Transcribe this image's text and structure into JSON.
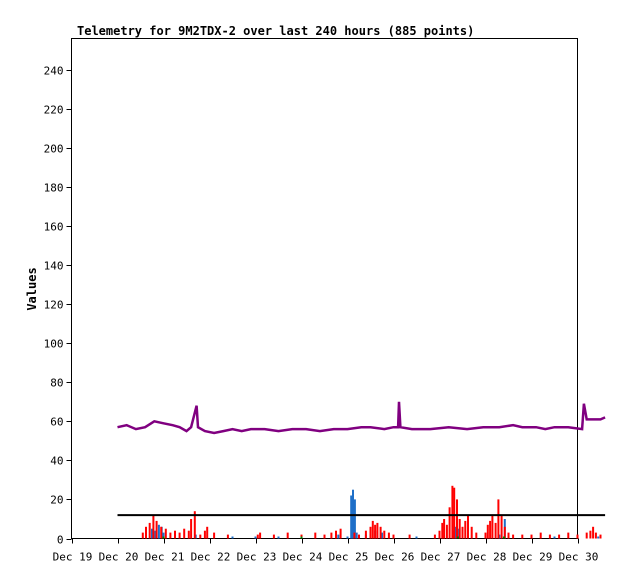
{
  "chart_data": {
    "type": "line",
    "title": "Telemetry for 9M2TDX-2 over last 240 hours (885 points)",
    "xlabel": "",
    "ylabel": "Values",
    "x_ticks": [
      "Dec 19",
      "Dec 20",
      "Dec 21",
      "Dec 22",
      "Dec 23",
      "Dec 24",
      "Dec 25",
      "Dec 26",
      "Dec 27",
      "Dec 28",
      "Dec 29",
      "Dec 30"
    ],
    "x_range_days": [
      0,
      11
    ],
    "y_ticks": [
      "0",
      "20",
      "40",
      "60",
      "80",
      "100",
      "120",
      "140",
      "160",
      "180",
      "200",
      "220",
      "240"
    ],
    "ylim": [
      0,
      256
    ],
    "grid": false,
    "series": [
      {
        "color": "#800080",
        "style": "line",
        "points": [
          [
            1.0,
            57
          ],
          [
            1.2,
            58
          ],
          [
            1.4,
            56
          ],
          [
            1.6,
            57
          ],
          [
            1.8,
            60
          ],
          [
            2.0,
            59
          ],
          [
            2.2,
            58
          ],
          [
            2.35,
            57
          ],
          [
            2.5,
            55
          ],
          [
            2.6,
            57
          ],
          [
            2.72,
            68
          ],
          [
            2.75,
            57
          ],
          [
            2.9,
            55
          ],
          [
            3.1,
            54
          ],
          [
            3.3,
            55
          ],
          [
            3.5,
            56
          ],
          [
            3.7,
            55
          ],
          [
            3.9,
            56
          ],
          [
            4.2,
            56
          ],
          [
            4.5,
            55
          ],
          [
            4.8,
            56
          ],
          [
            5.1,
            56
          ],
          [
            5.4,
            55
          ],
          [
            5.7,
            56
          ],
          [
            6.0,
            56
          ],
          [
            6.3,
            57
          ],
          [
            6.5,
            57
          ],
          [
            6.8,
            56
          ],
          [
            7.0,
            57
          ],
          [
            7.1,
            57
          ],
          [
            7.12,
            70
          ],
          [
            7.15,
            57
          ],
          [
            7.4,
            56
          ],
          [
            7.8,
            56
          ],
          [
            8.2,
            57
          ],
          [
            8.6,
            56
          ],
          [
            8.95,
            57
          ],
          [
            9.3,
            57
          ],
          [
            9.6,
            58
          ],
          [
            9.8,
            57
          ],
          [
            10.1,
            57
          ],
          [
            10.3,
            56
          ],
          [
            10.5,
            57
          ],
          [
            10.8,
            57
          ],
          [
            11.1,
            56
          ],
          [
            11.14,
            69
          ],
          [
            11.2,
            61
          ],
          [
            11.35,
            61
          ],
          [
            11.5,
            61
          ],
          [
            11.6,
            62
          ]
        ]
      },
      {
        "color": "#000000",
        "style": "line",
        "points": [
          [
            1.0,
            12
          ],
          [
            11.6,
            12
          ]
        ]
      },
      {
        "color": "#ff0000",
        "style": "impulse",
        "points": [
          [
            1.55,
            3
          ],
          [
            1.62,
            6
          ],
          [
            1.7,
            8
          ],
          [
            1.78,
            12
          ],
          [
            1.85,
            9
          ],
          [
            1.95,
            6
          ],
          [
            2.05,
            5
          ],
          [
            2.15,
            3
          ],
          [
            2.25,
            4
          ],
          [
            2.35,
            3
          ],
          [
            2.45,
            5
          ],
          [
            2.55,
            4
          ],
          [
            2.6,
            10
          ],
          [
            2.68,
            14
          ],
          [
            2.8,
            2
          ],
          [
            2.9,
            4
          ],
          [
            2.95,
            6
          ],
          [
            3.1,
            3
          ],
          [
            3.4,
            2
          ],
          [
            4.05,
            2
          ],
          [
            4.1,
            3
          ],
          [
            4.4,
            2
          ],
          [
            4.7,
            3
          ],
          [
            5.0,
            2
          ],
          [
            5.3,
            3
          ],
          [
            5.5,
            2
          ],
          [
            5.65,
            3
          ],
          [
            5.75,
            4
          ],
          [
            5.85,
            5
          ],
          [
            6.15,
            3
          ],
          [
            6.25,
            2
          ],
          [
            6.4,
            4
          ],
          [
            6.5,
            6
          ],
          [
            6.55,
            9
          ],
          [
            6.6,
            7
          ],
          [
            6.65,
            8
          ],
          [
            6.72,
            6
          ],
          [
            6.8,
            4
          ],
          [
            6.9,
            3
          ],
          [
            7.0,
            2
          ],
          [
            7.35,
            2
          ],
          [
            7.9,
            2
          ],
          [
            8.0,
            4
          ],
          [
            8.06,
            8
          ],
          [
            8.1,
            10
          ],
          [
            8.16,
            7
          ],
          [
            8.22,
            16
          ],
          [
            8.28,
            27
          ],
          [
            8.32,
            26
          ],
          [
            8.38,
            20
          ],
          [
            8.44,
            10
          ],
          [
            8.5,
            6
          ],
          [
            8.56,
            9
          ],
          [
            8.62,
            12
          ],
          [
            8.7,
            6
          ],
          [
            8.8,
            3
          ],
          [
            9.0,
            3
          ],
          [
            9.05,
            7
          ],
          [
            9.1,
            9
          ],
          [
            9.15,
            12
          ],
          [
            9.22,
            8
          ],
          [
            9.28,
            20
          ],
          [
            9.35,
            12
          ],
          [
            9.42,
            6
          ],
          [
            9.5,
            3
          ],
          [
            9.6,
            2
          ],
          [
            9.8,
            2
          ],
          [
            10.0,
            2
          ],
          [
            10.2,
            3
          ],
          [
            10.4,
            2
          ],
          [
            10.6,
            2
          ],
          [
            10.8,
            3
          ],
          [
            11.0,
            2
          ],
          [
            11.2,
            3
          ],
          [
            11.28,
            4
          ],
          [
            11.34,
            6
          ],
          [
            11.4,
            3
          ],
          [
            11.5,
            2
          ]
        ]
      },
      {
        "color": "#1e6fc8",
        "style": "impulse",
        "points": [
          [
            1.75,
            5
          ],
          [
            1.82,
            4
          ],
          [
            1.9,
            7
          ],
          [
            1.96,
            6
          ],
          [
            2.0,
            3
          ],
          [
            2.7,
            2
          ],
          [
            3.5,
            1
          ],
          [
            4.0,
            1
          ],
          [
            4.5,
            1
          ],
          [
            5.0,
            1
          ],
          [
            5.5,
            1
          ],
          [
            5.8,
            2
          ],
          [
            6.0,
            1
          ],
          [
            6.08,
            22
          ],
          [
            6.12,
            25
          ],
          [
            6.16,
            20
          ],
          [
            6.2,
            3
          ],
          [
            6.4,
            2
          ],
          [
            6.6,
            4
          ],
          [
            6.75,
            3
          ],
          [
            7.0,
            1
          ],
          [
            7.5,
            1
          ],
          [
            8.0,
            1
          ],
          [
            8.3,
            4
          ],
          [
            8.35,
            6
          ],
          [
            8.4,
            5
          ],
          [
            8.5,
            3
          ],
          [
            9.0,
            1
          ],
          [
            9.3,
            2
          ],
          [
            9.42,
            10
          ],
          [
            9.5,
            2
          ],
          [
            10.0,
            1
          ],
          [
            10.5,
            1
          ],
          [
            11.0,
            1
          ],
          [
            11.45,
            1
          ]
        ]
      },
      {
        "color": "#008000",
        "style": "impulse",
        "points": [
          [
            2.0,
            1
          ],
          [
            5.0,
            1
          ],
          [
            8.4,
            1
          ],
          [
            9.4,
            1
          ]
        ]
      }
    ]
  }
}
